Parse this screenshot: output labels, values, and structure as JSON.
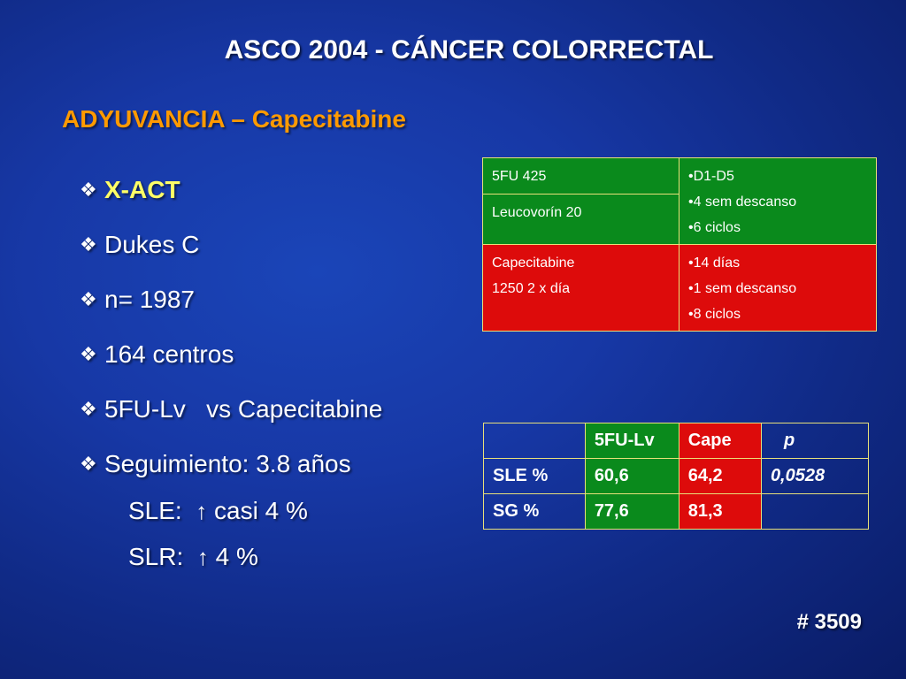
{
  "title": "ASCO 2004 -  CÁNCER COLORRECTAL",
  "subtitle": "ADYUVANCIA – Capecitabine",
  "bullets": [
    "X-ACT",
    "Dukes C",
    "n= 1987",
    "164 centros",
    "5FU-Lv   vs Capecitabine",
    "Seguimiento: 3.8 años"
  ],
  "bullet_glyph": "❖",
  "sub_lines": [
    {
      "label": "SLE:",
      "arrow": "↑",
      "text": "casi 4 %"
    },
    {
      "label": "SLR:",
      "arrow": "↑",
      "text": "4 %"
    }
  ],
  "regimen_table": {
    "row1": {
      "drug1": "5FU 425",
      "drug2": "Leucovorín 20",
      "schedule": [
        "•D1-D5",
        "•4 sem descanso",
        "•6 ciclos"
      ]
    },
    "row2": {
      "drug_line1": "Capecitabine",
      "drug_line2": "1250  2 x día",
      "schedule": [
        "•14 días",
        "•1 sem descanso",
        "•8 ciclos"
      ]
    },
    "colors": {
      "green": "#0a8a1c",
      "red": "#dd0b0b",
      "border": "#e8e07a"
    }
  },
  "results_table": {
    "header": [
      "",
      "5FU-Lv",
      "Cape",
      "p"
    ],
    "rows": [
      [
        "SLE %",
        "60,6",
        "64,2",
        "0,0528"
      ],
      [
        "SG %",
        "77,6",
        "81,3",
        ""
      ]
    ]
  },
  "footnote": "# 3509"
}
